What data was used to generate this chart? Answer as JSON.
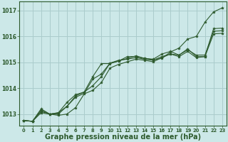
{
  "background_color": "#cce8e8",
  "grid_color": "#aacccc",
  "line_color": "#2d5a2d",
  "marker_color": "#2d5a2d",
  "xlabel": "Graphe pression niveau de la mer (hPa)",
  "xlabel_fontsize": 7.0,
  "ylim": [
    1012.55,
    1017.35
  ],
  "xlim": [
    -0.5,
    23.5
  ],
  "yticks": [
    1013,
    1014,
    1015,
    1016,
    1017
  ],
  "xticks": [
    0,
    1,
    2,
    3,
    4,
    5,
    6,
    7,
    8,
    9,
    10,
    11,
    12,
    13,
    14,
    15,
    16,
    17,
    18,
    19,
    20,
    21,
    22,
    23
  ],
  "series": [
    [
      1012.75,
      1012.72,
      1013.1,
      1013.0,
      1013.0,
      1013.3,
      1013.7,
      1013.85,
      1014.45,
      1014.95,
      1014.95,
      1015.05,
      1015.15,
      1015.25,
      1015.15,
      1015.1,
      1015.15,
      1015.4,
      1015.55,
      1015.9,
      1016.0,
      1016.55,
      1016.95,
      1017.1
    ],
    [
      1012.75,
      1012.72,
      1013.2,
      1013.0,
      1013.05,
      1013.45,
      1013.75,
      1013.85,
      1014.1,
      1014.45,
      1014.97,
      1015.05,
      1015.22,
      1015.22,
      1015.15,
      1015.12,
      1015.32,
      1015.42,
      1015.28,
      1015.52,
      1015.22,
      1015.22,
      1016.3,
      1016.32
    ],
    [
      1012.75,
      1012.72,
      1013.15,
      1013.0,
      1013.05,
      1013.3,
      1013.65,
      1013.8,
      1014.35,
      1014.55,
      1014.97,
      1015.08,
      1015.12,
      1015.18,
      1015.12,
      1015.08,
      1015.22,
      1015.32,
      1015.28,
      1015.48,
      1015.28,
      1015.28,
      1016.2,
      1016.22
    ],
    [
      1012.75,
      1012.72,
      1013.05,
      1013.0,
      1012.95,
      1013.0,
      1013.25,
      1013.78,
      1013.92,
      1014.22,
      1014.78,
      1014.92,
      1015.02,
      1015.12,
      1015.08,
      1015.02,
      1015.18,
      1015.32,
      1015.22,
      1015.42,
      1015.18,
      1015.22,
      1016.1,
      1016.12
    ]
  ]
}
